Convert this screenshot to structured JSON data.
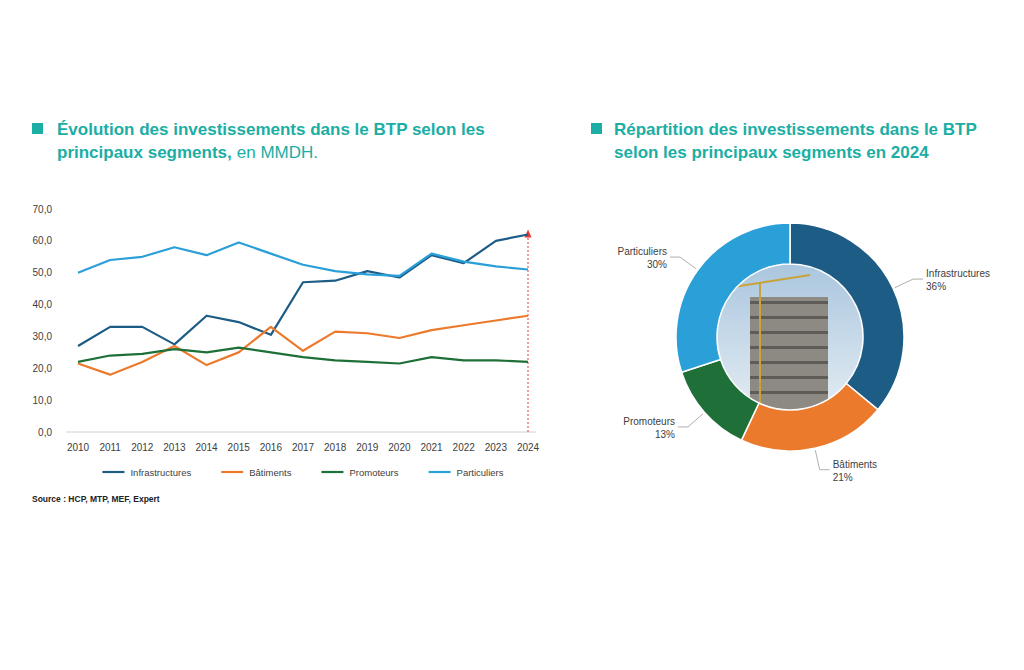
{
  "chart_data": [
    {
      "type": "line",
      "title": "Évolution des investissements dans le BTP selon les principaux segments,",
      "subtitle": "en MMDH.",
      "source": "Source : HCP, MTP, MEF, Expert",
      "categories": [
        "2010",
        "2011",
        "2012",
        "2013",
        "2014",
        "2015",
        "2016",
        "2017",
        "2018",
        "2019",
        "2020",
        "2021",
        "2022",
        "2023",
        "2024"
      ],
      "series": [
        {
          "name": "Infrastructures",
          "color": "#1c5c85",
          "values": [
            27,
            33,
            33,
            27.5,
            36.5,
            34.5,
            30.5,
            47,
            47.5,
            50.5,
            48.5,
            55.5,
            53,
            60,
            62
          ]
        },
        {
          "name": "Bâtiments",
          "color": "#ec7a2c",
          "values": [
            21.5,
            18,
            22,
            27,
            21,
            25,
            33,
            25.5,
            31.5,
            31,
            29.5,
            32,
            33.5,
            35,
            36.5
          ]
        },
        {
          "name": "Promoteurs",
          "color": "#1e7038",
          "values": [
            22,
            24,
            24.5,
            26,
            25,
            26.5,
            25,
            23.5,
            22.5,
            22,
            21.5,
            23.5,
            22.5,
            22.5,
            22
          ]
        },
        {
          "name": "Particuliers",
          "color": "#2a9fd8",
          "values": [
            50,
            54,
            55,
            58,
            55.5,
            59.5,
            56,
            52.5,
            50.5,
            49.5,
            49,
            56,
            53.5,
            52,
            51
          ]
        }
      ],
      "ylim": [
        0,
        70
      ],
      "yticks": [
        {
          "value": 0,
          "label": "0,0"
        },
        {
          "value": 10,
          "label": "10,0"
        },
        {
          "value": 20,
          "label": "20,0"
        },
        {
          "value": 30,
          "label": "30,0"
        },
        {
          "value": 40,
          "label": "40,0"
        },
        {
          "value": 50,
          "label": "50,0"
        },
        {
          "value": 60,
          "label": "60,0"
        },
        {
          "value": 70,
          "label": "70,0"
        }
      ],
      "grid": false,
      "legend": "bottom"
    },
    {
      "type": "donut",
      "title": "Répartition des investissements dans le BTP selon les principaux segments en 2024",
      "categories": [
        "Infrastructures",
        "Bâtiments",
        "Promoteurs",
        "Particuliers"
      ],
      "values": [
        36,
        21,
        13,
        30
      ],
      "value_labels": [
        "36%",
        "21%",
        "13%",
        "30%"
      ],
      "colors": [
        "#1c5c85",
        "#ec7a2c",
        "#1e7038",
        "#2a9fd8"
      ],
      "data_labels": true
    }
  ]
}
